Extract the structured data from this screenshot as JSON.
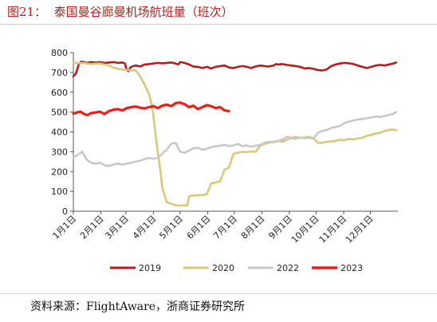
{
  "page": {
    "title": "图21：  泰国曼谷廊曼机场航班量（班次）",
    "source": "资料来源：FlightAware，浙商证券研究所"
  },
  "chart_data": {
    "type": "line",
    "title": "泰国曼谷廊曼机场航班量（班次）",
    "xlabel": "",
    "ylabel": "",
    "ylim": [
      0,
      800
    ],
    "yticks": [
      0,
      100,
      200,
      300,
      400,
      500,
      600,
      700,
      800
    ],
    "xlim": [
      0,
      365
    ],
    "xticks": [
      {
        "label": "1月1日",
        "day": 0
      },
      {
        "label": "2月1日",
        "day": 31
      },
      {
        "label": "3月1日",
        "day": 59
      },
      {
        "label": "4月1日",
        "day": 90
      },
      {
        "label": "5月1日",
        "day": 120
      },
      {
        "label": "6月1日",
        "day": 151
      },
      {
        "label": "7月1日",
        "day": 181
      },
      {
        "label": "8月1日",
        "day": 212
      },
      {
        "label": "9月1日",
        "day": 243
      },
      {
        "label": "10月1日",
        "day": 273
      },
      {
        "label": "11月1日",
        "day": 304
      },
      {
        "label": "12月1日",
        "day": 334
      }
    ],
    "grid": false,
    "legend_position": "bottom",
    "series": [
      {
        "name": "2019",
        "color": "#b51d1d",
        "width": 2.6,
        "x": [
          0,
          3,
          6,
          9,
          15,
          20,
          25,
          30,
          35,
          40,
          45,
          50,
          55,
          58,
          60,
          62,
          64,
          66,
          70,
          75,
          80,
          85,
          90,
          95,
          100,
          105,
          110,
          115,
          118,
          120,
          125,
          130,
          135,
          140,
          145,
          150,
          155,
          160,
          165,
          170,
          175,
          180,
          185,
          190,
          195,
          200,
          205,
          210,
          215,
          220,
          225,
          228,
          230,
          235,
          240,
          245,
          250,
          255,
          260,
          265,
          270,
          275,
          280,
          285,
          290,
          295,
          300,
          305,
          310,
          315,
          320,
          325,
          330,
          335,
          340,
          345,
          350,
          355,
          360,
          363
        ],
        "y": [
          680,
          695,
          740,
          755,
          748,
          752,
          750,
          752,
          748,
          750,
          752,
          748,
          750,
          745,
          712,
          706,
          725,
          730,
          735,
          730,
          740,
          742,
          745,
          748,
          746,
          748,
          750,
          745,
          740,
          752,
          748,
          740,
          730,
          728,
          722,
          728,
          720,
          728,
          732,
          735,
          725,
          722,
          728,
          732,
          728,
          722,
          730,
          735,
          732,
          730,
          735,
          742,
          740,
          742,
          738,
          735,
          732,
          728,
          720,
          722,
          718,
          712,
          710,
          715,
          732,
          740,
          745,
          748,
          746,
          742,
          735,
          728,
          722,
          728,
          735,
          738,
          735,
          740,
          745,
          750
        ]
      },
      {
        "name": "2020",
        "color": "#ddc57a",
        "width": 2.6,
        "x": [
          0,
          5,
          10,
          15,
          20,
          25,
          30,
          35,
          40,
          45,
          50,
          55,
          60,
          65,
          70,
          72,
          75,
          80,
          85,
          88,
          90,
          92,
          95,
          98,
          100,
          105,
          110,
          115,
          120,
          125,
          128,
          130,
          135,
          140,
          145,
          150,
          155,
          160,
          165,
          170,
          175,
          180,
          185,
          190,
          195,
          200,
          205,
          210,
          215,
          220,
          225,
          230,
          235,
          240,
          245,
          250,
          255,
          260,
          265,
          270,
          275,
          280,
          285,
          290,
          295,
          300,
          305,
          310,
          315,
          320,
          325,
          330,
          335,
          340,
          345,
          350,
          355,
          360,
          363
        ],
        "y": [
          750,
          745,
          748,
          745,
          742,
          745,
          745,
          740,
          735,
          725,
          718,
          715,
          712,
          712,
          710,
          700,
          680,
          640,
          590,
          540,
          480,
          400,
          300,
          200,
          120,
          45,
          38,
          30,
          28,
          30,
          28,
          75,
          80,
          80,
          82,
          85,
          140,
          145,
          150,
          210,
          220,
          290,
          295,
          300,
          298,
          302,
          300,
          330,
          340,
          345,
          350,
          355,
          350,
          360,
          370,
          375,
          370,
          372,
          375,
          368,
          345,
          345,
          350,
          352,
          355,
          360,
          358,
          365,
          362,
          368,
          370,
          380,
          385,
          392,
          395,
          405,
          410,
          412,
          408
        ]
      },
      {
        "name": "2022",
        "color": "#c8c8c8",
        "width": 2.6,
        "x": [
          0,
          5,
          10,
          15,
          20,
          25,
          30,
          35,
          40,
          45,
          50,
          55,
          60,
          65,
          70,
          75,
          80,
          85,
          90,
          95,
          100,
          102,
          105,
          110,
          115,
          120,
          125,
          130,
          135,
          140,
          145,
          150,
          155,
          160,
          165,
          170,
          175,
          180,
          185,
          190,
          195,
          200,
          205,
          210,
          215,
          220,
          225,
          230,
          235,
          240,
          245,
          250,
          255,
          260,
          265,
          270,
          275,
          280,
          285,
          290,
          295,
          300,
          305,
          310,
          315,
          320,
          325,
          330,
          335,
          340,
          345,
          350,
          355,
          360,
          363
        ],
        "y": [
          270,
          285,
          300,
          260,
          245,
          240,
          245,
          232,
          228,
          235,
          240,
          235,
          240,
          245,
          250,
          255,
          262,
          268,
          265,
          270,
          290,
          300,
          310,
          340,
          345,
          300,
          295,
          305,
          318,
          320,
          310,
          315,
          322,
          328,
          330,
          335,
          328,
          332,
          340,
          328,
          332,
          325,
          330,
          335,
          345,
          350,
          348,
          352,
          362,
          375,
          370,
          365,
          372,
          368,
          370,
          366,
          395,
          405,
          410,
          420,
          425,
          430,
          445,
          452,
          458,
          462,
          465,
          470,
          472,
          478,
          475,
          480,
          485,
          492,
          500
        ]
      },
      {
        "name": "2023",
        "color": "#f21b16",
        "width": 3.2,
        "x": [
          0,
          4,
          8,
          12,
          16,
          20,
          25,
          30,
          35,
          40,
          45,
          50,
          55,
          60,
          65,
          70,
          75,
          80,
          85,
          90,
          95,
          100,
          105,
          110,
          115,
          120,
          125,
          130,
          135,
          140,
          145,
          150,
          155,
          160,
          165,
          170,
          175
        ],
        "y": [
          492,
          498,
          502,
          490,
          485,
          495,
          498,
          502,
          490,
          505,
          512,
          515,
          508,
          520,
          525,
          528,
          522,
          518,
          525,
          530,
          520,
          532,
          538,
          530,
          545,
          548,
          540,
          525,
          532,
          515,
          525,
          535,
          530,
          520,
          525,
          508,
          505
        ]
      }
    ]
  }
}
